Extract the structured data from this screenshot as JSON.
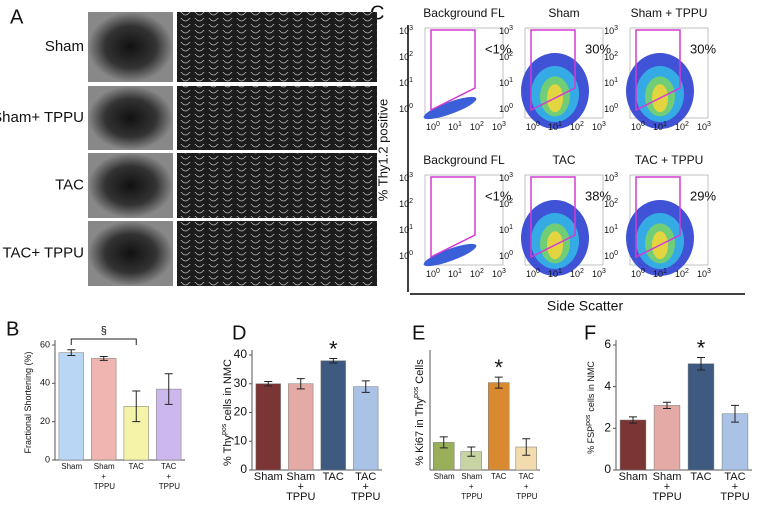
{
  "panels": [
    "A",
    "B",
    "C",
    "D",
    "E",
    "F"
  ],
  "panel_a": {
    "rows": [
      "Sham",
      "Sham+ TPPU",
      "TAC",
      "TAC+ TPPU"
    ]
  },
  "panel_c": {
    "plots": [
      {
        "title": "Background FL",
        "percent": "<1%"
      },
      {
        "title": "Sham",
        "percent": "30%"
      },
      {
        "title": "Sham + TPPU",
        "percent": "30%"
      },
      {
        "title": "Background FL",
        "percent": "<1%"
      },
      {
        "title": "TAC",
        "percent": "38%"
      },
      {
        "title": "TAC + TPPU",
        "percent": "29%"
      }
    ],
    "tick_base": "10",
    "tick_exponents": [
      "0",
      "1",
      "2",
      "3"
    ],
    "ylabel": "% Thy1.2 positive",
    "xlabel": "Side Scatter"
  },
  "chart_data": [
    {
      "type": "bar",
      "ylabel": "Fractional Shortening (%)",
      "categories": [
        "Sham",
        "Sham + TPPU",
        "TAC",
        "TAC + TPPU"
      ],
      "values": [
        56,
        53,
        28,
        37
      ],
      "errors": [
        1.5,
        1,
        8,
        8
      ],
      "colors": [
        "#b9d6f5",
        "#f0b5b0",
        "#f5f3a8",
        "#cdb8ee"
      ],
      "ylim": [
        0,
        60
      ],
      "yticks": [
        0,
        20,
        40,
        60
      ],
      "annotation": "§"
    },
    {
      "type": "bar",
      "ylabel": "% Thy",
      "ylabel_sup": "pos",
      "ylabel_end": "cells in NMC",
      "categories": [
        "Sham",
        "Sham + TPPU",
        "TAC",
        "TAC + TPPU"
      ],
      "values": [
        30,
        30,
        38,
        29
      ],
      "errors": [
        0.8,
        1.8,
        0.8,
        2
      ],
      "colors": [
        "#7b3535",
        "#e3aaa6",
        "#3e5a80",
        "#a9c2e6"
      ],
      "ylim": [
        0,
        40
      ],
      "yticks": [
        0,
        10,
        20,
        30,
        40
      ],
      "annotation": "*"
    },
    {
      "type": "bar",
      "ylabel": "% Ki67 in Thy",
      "ylabel_sup": "pos",
      "ylabel_end": "Cells",
      "categories": [
        "Sham",
        "Sham + TPPU",
        "TAC",
        "TAC + TPPU"
      ],
      "values": [
        0.6,
        0.4,
        1.9,
        0.5
      ],
      "errors": [
        0.12,
        0.1,
        0.12,
        0.18
      ],
      "colors": [
        "#9aaf5a",
        "#c9d4a5",
        "#d98a30",
        "#f2dcae"
      ],
      "ylim": [
        0,
        2.5
      ],
      "annotation": "*"
    },
    {
      "type": "bar",
      "ylabel": "% FSP",
      "ylabel_sup": "pos",
      "ylabel_end": "cells in NMC",
      "categories": [
        "Sham",
        "Sham + TPPU",
        "TAC",
        "TAC + TPPU"
      ],
      "values": [
        2.4,
        3.1,
        5.1,
        2.7
      ],
      "errors": [
        0.15,
        0.15,
        0.3,
        0.4
      ],
      "colors": [
        "#7b3535",
        "#e3aaa6",
        "#3e5a80",
        "#a9c2e6"
      ],
      "ylim": [
        0,
        6
      ],
      "yticks": [
        0,
        2,
        4,
        6
      ],
      "annotation": "*"
    }
  ]
}
